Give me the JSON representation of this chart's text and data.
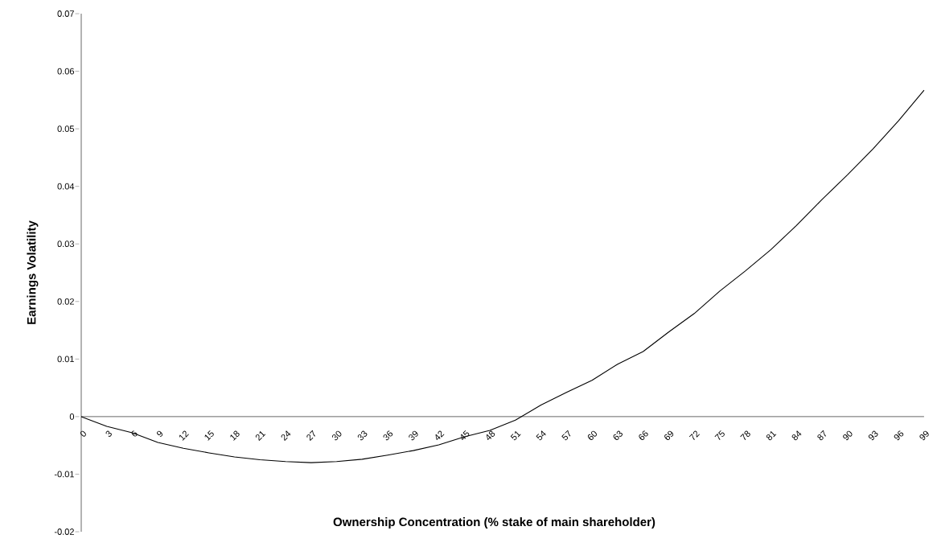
{
  "chart_data": {
    "type": "line",
    "xlabel": "Ownership Concentration (% stake of main shareholder)",
    "ylabel": "Earnings Volatility",
    "x": [
      0,
      3,
      6,
      9,
      12,
      15,
      18,
      21,
      24,
      27,
      30,
      33,
      36,
      39,
      42,
      45,
      48,
      51,
      54,
      57,
      60,
      63,
      66,
      69,
      72,
      75,
      78,
      81,
      84,
      87,
      90,
      93,
      96,
      99
    ],
    "values": [
      0,
      -0.0017,
      -0.0028,
      -0.0045,
      -0.0055,
      -0.0063,
      -0.007,
      -0.0075,
      -0.0078,
      -0.008,
      -0.0078,
      -0.0074,
      -0.0067,
      -0.0059,
      -0.0049,
      -0.0035,
      -0.0024,
      -0.0006,
      0.002,
      0.0042,
      0.0063,
      0.0091,
      0.0113,
      0.0147,
      0.0179,
      0.0218,
      0.0253,
      0.029,
      0.0332,
      0.0377,
      0.042,
      0.0465,
      0.0514,
      0.0567
    ],
    "color": "#000000",
    "line_style": "solid",
    "marker": "none",
    "xlim": [
      0,
      99
    ],
    "xticks": [
      0,
      3,
      6,
      9,
      12,
      15,
      18,
      21,
      24,
      27,
      30,
      33,
      36,
      39,
      42,
      45,
      48,
      51,
      54,
      57,
      60,
      63,
      66,
      69,
      72,
      75,
      78,
      81,
      84,
      87,
      90,
      93,
      96,
      99
    ],
    "ylim": [
      -0.02,
      0.07
    ],
    "yticks": [
      -0.02,
      -0.01,
      0,
      0.01,
      0.02,
      0.03,
      0.04,
      0.05,
      0.06,
      0.07
    ]
  }
}
